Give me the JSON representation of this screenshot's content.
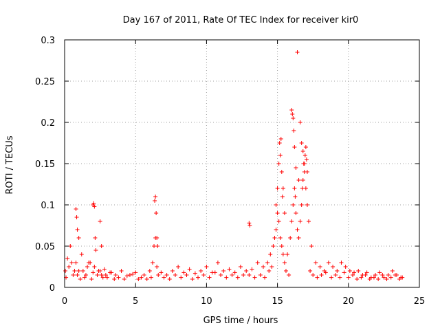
{
  "chart_data": {
    "type": "scatter",
    "title": "Day 167 of 2011, Rate Of TEC Index for receiver kir0",
    "xlabel": "GPS time / hours",
    "ylabel": "ROTI / TECUs",
    "xlim": [
      0,
      25
    ],
    "ylim": [
      0,
      0.3
    ],
    "xticks": [
      "0",
      "5",
      "10",
      "15",
      "20",
      "25"
    ],
    "yticks": [
      "0",
      "0.05",
      "0.1",
      "0.15",
      "0.2",
      "0.25",
      "0.3"
    ],
    "grid": true,
    "marker": "+",
    "color": "#ff0000",
    "series": [
      {
        "x": [
          0.05,
          0.2,
          0.4,
          0.6,
          0.8,
          1.0,
          1.2,
          1.4,
          1.6,
          1.8,
          2.0,
          2.2,
          2.4,
          2.6,
          2.8,
          3.0,
          3.3,
          3.6,
          4.0,
          4.4,
          4.8,
          5.2,
          5.6,
          6.0,
          6.2,
          6.3,
          6.4,
          6.5,
          6.8,
          7.2,
          7.6,
          8.0,
          8.4,
          8.8,
          9.2,
          9.6,
          10.0,
          10.4,
          10.8,
          11.2,
          11.6,
          12.0,
          12.4,
          12.8,
          13.0,
          13.2,
          13.6,
          14.0,
          14.3,
          14.5,
          14.7,
          14.8,
          14.9,
          15.0,
          15.1,
          15.2,
          15.3,
          15.4,
          15.5,
          15.7,
          15.9,
          16.0,
          16.1,
          16.2,
          16.3,
          16.4,
          16.5,
          16.6,
          16.7,
          16.8,
          16.9,
          17.0,
          17.1,
          17.2,
          17.4,
          17.7,
          18.0,
          18.3,
          18.6,
          18.9,
          19.2,
          19.5,
          19.8,
          20.1,
          20.4,
          20.7,
          21.0,
          21.3,
          21.6,
          21.9,
          22.2,
          22.5,
          22.8,
          23.1,
          23.4,
          23.7,
          0.1,
          0.3,
          0.5,
          0.7,
          0.9,
          1.1,
          1.3,
          1.5,
          1.7,
          1.9,
          2.1,
          2.3,
          2.5,
          2.7,
          2.9,
          3.2,
          3.5,
          3.8,
          4.2,
          4.6,
          5.0,
          5.4,
          5.8,
          6.1,
          6.6,
          7.0,
          7.4,
          7.8,
          8.2,
          8.6,
          9.0,
          9.4,
          9.8,
          10.2,
          10.6,
          11.0,
          11.4,
          11.8,
          12.2,
          12.6,
          13.4,
          13.8,
          14.1,
          14.4,
          14.6,
          15.6,
          15.8,
          17.3,
          17.5,
          17.8,
          18.1,
          18.4,
          18.8,
          19.1,
          19.4,
          19.7,
          20.0,
          20.3,
          20.6,
          20.9,
          21.2,
          21.5,
          21.8,
          22.1,
          22.4,
          22.7,
          23.0,
          23.3,
          23.6,
          23.8,
          0.8,
          0.85,
          0.9,
          1.0,
          2.0,
          2.05,
          2.1,
          2.15,
          2.5,
          2.6,
          6.35,
          6.4,
          6.45,
          6.5,
          6.55,
          13.0,
          13.05,
          14.9,
          15.0,
          15.1,
          15.2,
          15.25,
          15.3,
          15.35,
          15.5,
          16.0,
          16.05,
          16.1,
          16.15,
          16.2,
          16.3,
          16.5,
          16.6,
          16.7,
          16.8,
          16.85,
          16.9,
          16.95,
          17.0,
          17.05,
          17.1,
          16.4,
          15.15,
          15.4,
          16.25,
          16.75
        ],
        "y": [
          0.02,
          0.035,
          0.05,
          0.015,
          0.03,
          0.02,
          0.04,
          0.012,
          0.025,
          0.03,
          0.018,
          0.045,
          0.02,
          0.015,
          0.022,
          0.012,
          0.018,
          0.015,
          0.02,
          0.014,
          0.016,
          0.01,
          0.015,
          0.02,
          0.03,
          0.05,
          0.06,
          0.025,
          0.018,
          0.015,
          0.02,
          0.025,
          0.018,
          0.022,
          0.017,
          0.02,
          0.025,
          0.018,
          0.03,
          0.02,
          0.022,
          0.018,
          0.025,
          0.02,
          0.015,
          0.022,
          0.03,
          0.025,
          0.03,
          0.04,
          0.05,
          0.06,
          0.07,
          0.09,
          0.08,
          0.06,
          0.05,
          0.04,
          0.03,
          0.04,
          0.06,
          0.08,
          0.1,
          0.12,
          0.09,
          0.07,
          0.06,
          0.08,
          0.1,
          0.13,
          0.15,
          0.12,
          0.1,
          0.08,
          0.05,
          0.03,
          0.025,
          0.02,
          0.03,
          0.025,
          0.02,
          0.03,
          0.025,
          0.02,
          0.018,
          0.02,
          0.015,
          0.018,
          0.012,
          0.015,
          0.018,
          0.012,
          0.015,
          0.02,
          0.015,
          0.012,
          0.012,
          0.025,
          0.03,
          0.02,
          0.015,
          0.01,
          0.02,
          0.015,
          0.03,
          0.01,
          0.025,
          0.015,
          0.02,
          0.012,
          0.015,
          0.018,
          0.01,
          0.012,
          0.01,
          0.015,
          0.018,
          0.012,
          0.01,
          0.012,
          0.015,
          0.012,
          0.01,
          0.015,
          0.012,
          0.015,
          0.01,
          0.012,
          0.015,
          0.012,
          0.018,
          0.015,
          0.012,
          0.015,
          0.012,
          0.015,
          0.012,
          0.015,
          0.012,
          0.02,
          0.025,
          0.02,
          0.015,
          0.02,
          0.015,
          0.012,
          0.015,
          0.018,
          0.012,
          0.015,
          0.012,
          0.018,
          0.012,
          0.015,
          0.01,
          0.012,
          0.015,
          0.01,
          0.012,
          0.01,
          0.015,
          0.01,
          0.012,
          0.015,
          0.01,
          0.012,
          0.095,
          0.085,
          0.07,
          0.06,
          0.1,
          0.102,
          0.098,
          0.06,
          0.08,
          0.05,
          0.105,
          0.11,
          0.09,
          0.06,
          0.05,
          0.078,
          0.075,
          0.1,
          0.12,
          0.15,
          0.16,
          0.18,
          0.14,
          0.11,
          0.09,
          0.215,
          0.21,
          0.205,
          0.19,
          0.17,
          0.145,
          0.13,
          0.2,
          0.175,
          0.165,
          0.15,
          0.14,
          0.16,
          0.17,
          0.155,
          0.14,
          0.285,
          0.175,
          0.12,
          0.11,
          0.12
        ]
      }
    ]
  }
}
